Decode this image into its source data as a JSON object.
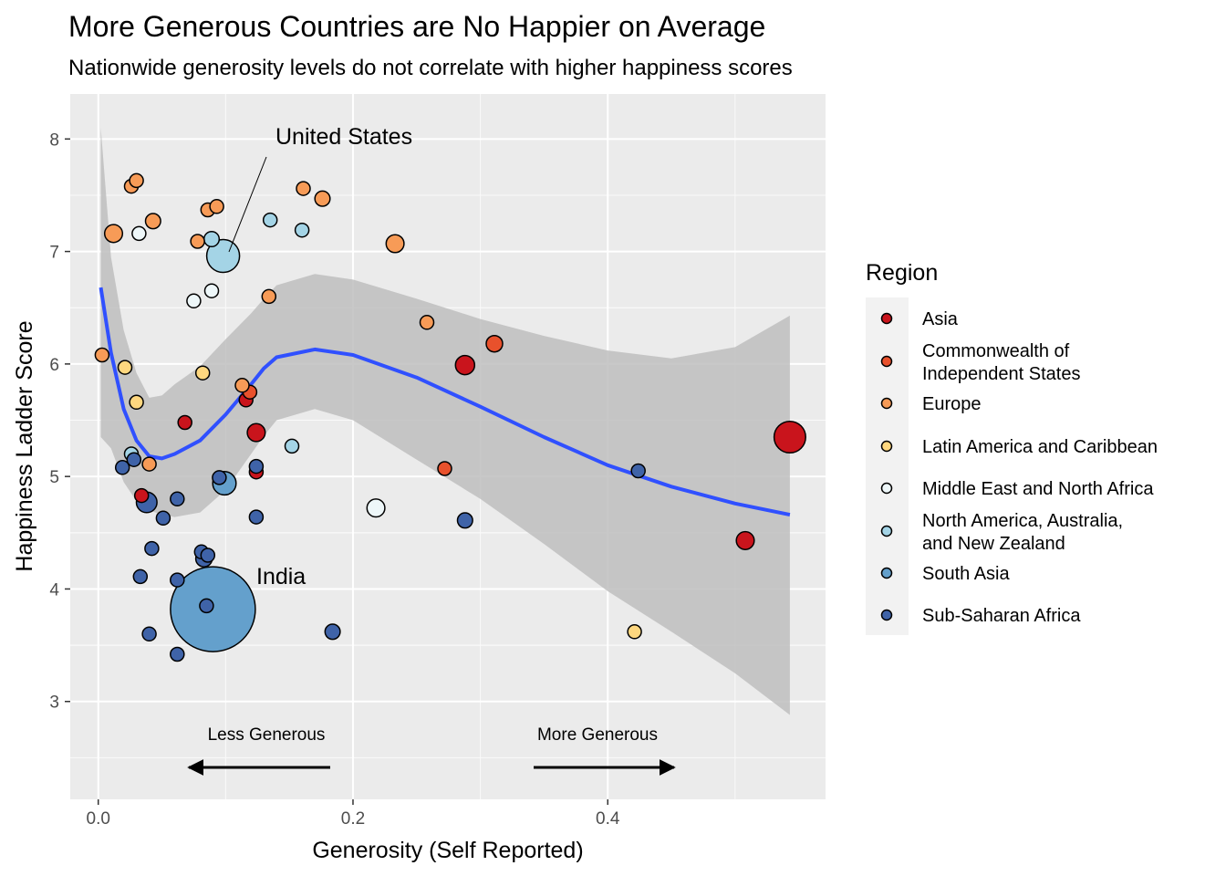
{
  "chart_data": {
    "type": "scatter",
    "title": "More Generous Countries are No Happier on Average",
    "subtitle": "Nationwide generosity levels do not correlate with higher happiness scores",
    "xlabel": "Generosity (Self Reported)",
    "ylabel": "Happiness Ladder Score",
    "xlim": [
      -0.022,
      0.571
    ],
    "ylim": [
      2.13,
      8.4
    ],
    "x_ticks": [
      0.0,
      0.2,
      0.4
    ],
    "x_tick_labels": [
      "0.0",
      "0.2",
      "0.4"
    ],
    "y_ticks": [
      3,
      4,
      5,
      6,
      7,
      8
    ],
    "y_tick_labels": [
      "3",
      "4",
      "5",
      "6",
      "7",
      "8"
    ],
    "grid": true,
    "legend": {
      "title": "Region",
      "placement": "right",
      "entries": [
        {
          "lines": [
            "Asia"
          ],
          "color": "#c9141c"
        },
        {
          "lines": [
            "Commonwealth of",
            "Independent States"
          ],
          "color": "#e8512c"
        },
        {
          "lines": [
            "Europe"
          ],
          "color": "#f79b57"
        },
        {
          "lines": [
            "Latin America and Caribbean"
          ],
          "color": "#fed77f"
        },
        {
          "lines": [
            "Middle East and North Africa"
          ],
          "color": "#eef7f9"
        },
        {
          "lines": [
            "North America, Australia,",
            "and New Zealand"
          ],
          "color": "#a4d4e6"
        },
        {
          "lines": [
            "South Asia"
          ],
          "color": "#64a0cc"
        },
        {
          "lines": [
            "Sub-Saharan Africa"
          ],
          "color": "#3f63a8"
        }
      ]
    },
    "annotations": {
      "united_states": "United States",
      "india": "India",
      "less_generous": "Less Generous",
      "more_generous": "More Generous"
    },
    "smooth_line": {
      "color": "#3050ff",
      "band_color": "#bebebe",
      "x": [
        0.002,
        0.01,
        0.02,
        0.03,
        0.04,
        0.05,
        0.06,
        0.08,
        0.1,
        0.12,
        0.13,
        0.14,
        0.17,
        0.2,
        0.25,
        0.3,
        0.35,
        0.4,
        0.45,
        0.5,
        0.543
      ],
      "y": [
        6.68,
        6.1,
        5.6,
        5.32,
        5.18,
        5.16,
        5.2,
        5.32,
        5.55,
        5.82,
        5.96,
        6.06,
        6.13,
        6.08,
        5.88,
        5.62,
        5.35,
        5.1,
        4.91,
        4.76,
        4.66
      ],
      "lower": [
        5.35,
        5.25,
        4.95,
        4.78,
        4.7,
        4.66,
        4.64,
        4.68,
        4.88,
        5.2,
        5.36,
        5.5,
        5.6,
        5.5,
        5.15,
        4.8,
        4.4,
        3.98,
        3.62,
        3.25,
        2.88
      ],
      "upper": [
        8.1,
        6.95,
        6.3,
        5.92,
        5.7,
        5.72,
        5.82,
        5.98,
        6.22,
        6.45,
        6.58,
        6.7,
        6.8,
        6.75,
        6.58,
        6.4,
        6.25,
        6.12,
        6.05,
        6.15,
        6.43
      ]
    },
    "points": [
      {
        "x": 0.124,
        "y": 5.39,
        "region": "Asia",
        "size": 1.3
      },
      {
        "x": 0.124,
        "y": 5.04,
        "region": "Asia",
        "size": 1.0
      },
      {
        "x": 0.116,
        "y": 5.68,
        "region": "Asia",
        "size": 1.0
      },
      {
        "x": 0.068,
        "y": 5.48,
        "region": "Asia",
        "size": 1.0
      },
      {
        "x": 0.034,
        "y": 4.83,
        "region": "Asia",
        "size": 1.0
      },
      {
        "x": 0.288,
        "y": 5.99,
        "region": "Asia",
        "size": 1.4
      },
      {
        "x": 0.508,
        "y": 4.43,
        "region": "Asia",
        "size": 1.3
      },
      {
        "x": 0.543,
        "y": 5.35,
        "region": "Asia",
        "size": 2.3
      },
      {
        "x": 0.119,
        "y": 5.75,
        "region": "Commonwealth of Independent States",
        "size": 1.0
      },
      {
        "x": 0.311,
        "y": 6.18,
        "region": "Commonwealth of Independent States",
        "size": 1.2
      },
      {
        "x": 0.272,
        "y": 5.07,
        "region": "Commonwealth of Independent States",
        "size": 1.0
      },
      {
        "x": 0.026,
        "y": 7.58,
        "region": "Europe",
        "size": 1.0
      },
      {
        "x": 0.03,
        "y": 7.63,
        "region": "Europe",
        "size": 1.0
      },
      {
        "x": 0.012,
        "y": 7.16,
        "region": "Europe",
        "size": 1.3
      },
      {
        "x": 0.043,
        "y": 7.27,
        "region": "Europe",
        "size": 1.1
      },
      {
        "x": 0.086,
        "y": 7.37,
        "region": "Europe",
        "size": 1.0
      },
      {
        "x": 0.093,
        "y": 7.4,
        "region": "Europe",
        "size": 1.0
      },
      {
        "x": 0.078,
        "y": 7.09,
        "region": "Europe",
        "size": 1.0
      },
      {
        "x": 0.161,
        "y": 7.56,
        "region": "Europe",
        "size": 1.0
      },
      {
        "x": 0.176,
        "y": 7.47,
        "region": "Europe",
        "size": 1.1
      },
      {
        "x": 0.134,
        "y": 6.6,
        "region": "Europe",
        "size": 1.0
      },
      {
        "x": 0.233,
        "y": 7.07,
        "region": "Europe",
        "size": 1.3
      },
      {
        "x": 0.258,
        "y": 6.37,
        "region": "Europe",
        "size": 1.0
      },
      {
        "x": 0.113,
        "y": 5.81,
        "region": "Europe",
        "size": 1.0
      },
      {
        "x": 0.04,
        "y": 5.11,
        "region": "Europe",
        "size": 1.0
      },
      {
        "x": 0.003,
        "y": 6.08,
        "region": "Europe",
        "size": 1.0
      },
      {
        "x": 0.021,
        "y": 5.97,
        "region": "Latin America and Caribbean",
        "size": 1.0
      },
      {
        "x": 0.03,
        "y": 5.66,
        "region": "Latin America and Caribbean",
        "size": 1.0
      },
      {
        "x": 0.082,
        "y": 5.92,
        "region": "Latin America and Caribbean",
        "size": 1.0
      },
      {
        "x": 0.421,
        "y": 3.62,
        "region": "Latin America and Caribbean",
        "size": 1.0
      },
      {
        "x": 0.032,
        "y": 7.16,
        "region": "Middle East and North Africa",
        "size": 1.0
      },
      {
        "x": 0.075,
        "y": 6.56,
        "region": "Middle East and North Africa",
        "size": 1.0
      },
      {
        "x": 0.089,
        "y": 6.65,
        "region": "Middle East and North Africa",
        "size": 1.0
      },
      {
        "x": 0.218,
        "y": 4.72,
        "region": "Middle East and North Africa",
        "size": 1.3
      },
      {
        "x": 0.089,
        "y": 7.11,
        "region": "North America, Australia, and New Zealand",
        "size": 1.1
      },
      {
        "x": 0.135,
        "y": 7.28,
        "region": "North America, Australia, and New Zealand",
        "size": 1.0
      },
      {
        "x": 0.16,
        "y": 7.19,
        "region": "North America, Australia, and New Zealand",
        "size": 1.0
      },
      {
        "x": 0.098,
        "y": 6.96,
        "region": "North America, Australia, and New Zealand",
        "size": 2.4
      },
      {
        "x": 0.026,
        "y": 5.2,
        "region": "North America, Australia, and New Zealand",
        "size": 1.0
      },
      {
        "x": 0.152,
        "y": 5.27,
        "region": "North America, Australia, and New Zealand",
        "size": 1.0
      },
      {
        "x": 0.09,
        "y": 3.82,
        "region": "South Asia",
        "size": 6.2
      },
      {
        "x": 0.099,
        "y": 4.94,
        "region": "South Asia",
        "size": 1.7
      },
      {
        "x": 0.095,
        "y": 4.99,
        "region": "Sub-Saharan Africa",
        "size": 1.0
      },
      {
        "x": 0.038,
        "y": 4.77,
        "region": "Sub-Saharan Africa",
        "size": 1.5
      },
      {
        "x": 0.028,
        "y": 5.15,
        "region": "Sub-Saharan Africa",
        "size": 1.0
      },
      {
        "x": 0.019,
        "y": 5.08,
        "region": "Sub-Saharan Africa",
        "size": 1.0
      },
      {
        "x": 0.062,
        "y": 4.8,
        "region": "Sub-Saharan Africa",
        "size": 1.0
      },
      {
        "x": 0.051,
        "y": 4.63,
        "region": "Sub-Saharan Africa",
        "size": 1.0
      },
      {
        "x": 0.042,
        "y": 4.36,
        "region": "Sub-Saharan Africa",
        "size": 1.0
      },
      {
        "x": 0.033,
        "y": 4.11,
        "region": "Sub-Saharan Africa",
        "size": 1.0
      },
      {
        "x": 0.062,
        "y": 4.08,
        "region": "Sub-Saharan Africa",
        "size": 1.0
      },
      {
        "x": 0.04,
        "y": 3.6,
        "region": "Sub-Saharan Africa",
        "size": 1.0
      },
      {
        "x": 0.062,
        "y": 3.42,
        "region": "Sub-Saharan Africa",
        "size": 1.0
      },
      {
        "x": 0.081,
        "y": 4.33,
        "region": "Sub-Saharan Africa",
        "size": 1.0
      },
      {
        "x": 0.083,
        "y": 4.27,
        "region": "Sub-Saharan Africa",
        "size": 1.2
      },
      {
        "x": 0.086,
        "y": 4.3,
        "region": "Sub-Saharan Africa",
        "size": 1.0
      },
      {
        "x": 0.085,
        "y": 3.85,
        "region": "Sub-Saharan Africa",
        "size": 1.0
      },
      {
        "x": 0.124,
        "y": 4.64,
        "region": "Sub-Saharan Africa",
        "size": 1.0
      },
      {
        "x": 0.124,
        "y": 5.09,
        "region": "Sub-Saharan Africa",
        "size": 1.0
      },
      {
        "x": 0.184,
        "y": 3.62,
        "region": "Sub-Saharan Africa",
        "size": 1.1
      },
      {
        "x": 0.288,
        "y": 4.61,
        "region": "Sub-Saharan Africa",
        "size": 1.1
      },
      {
        "x": 0.424,
        "y": 5.05,
        "region": "Sub-Saharan Africa",
        "size": 1.0
      }
    ]
  }
}
